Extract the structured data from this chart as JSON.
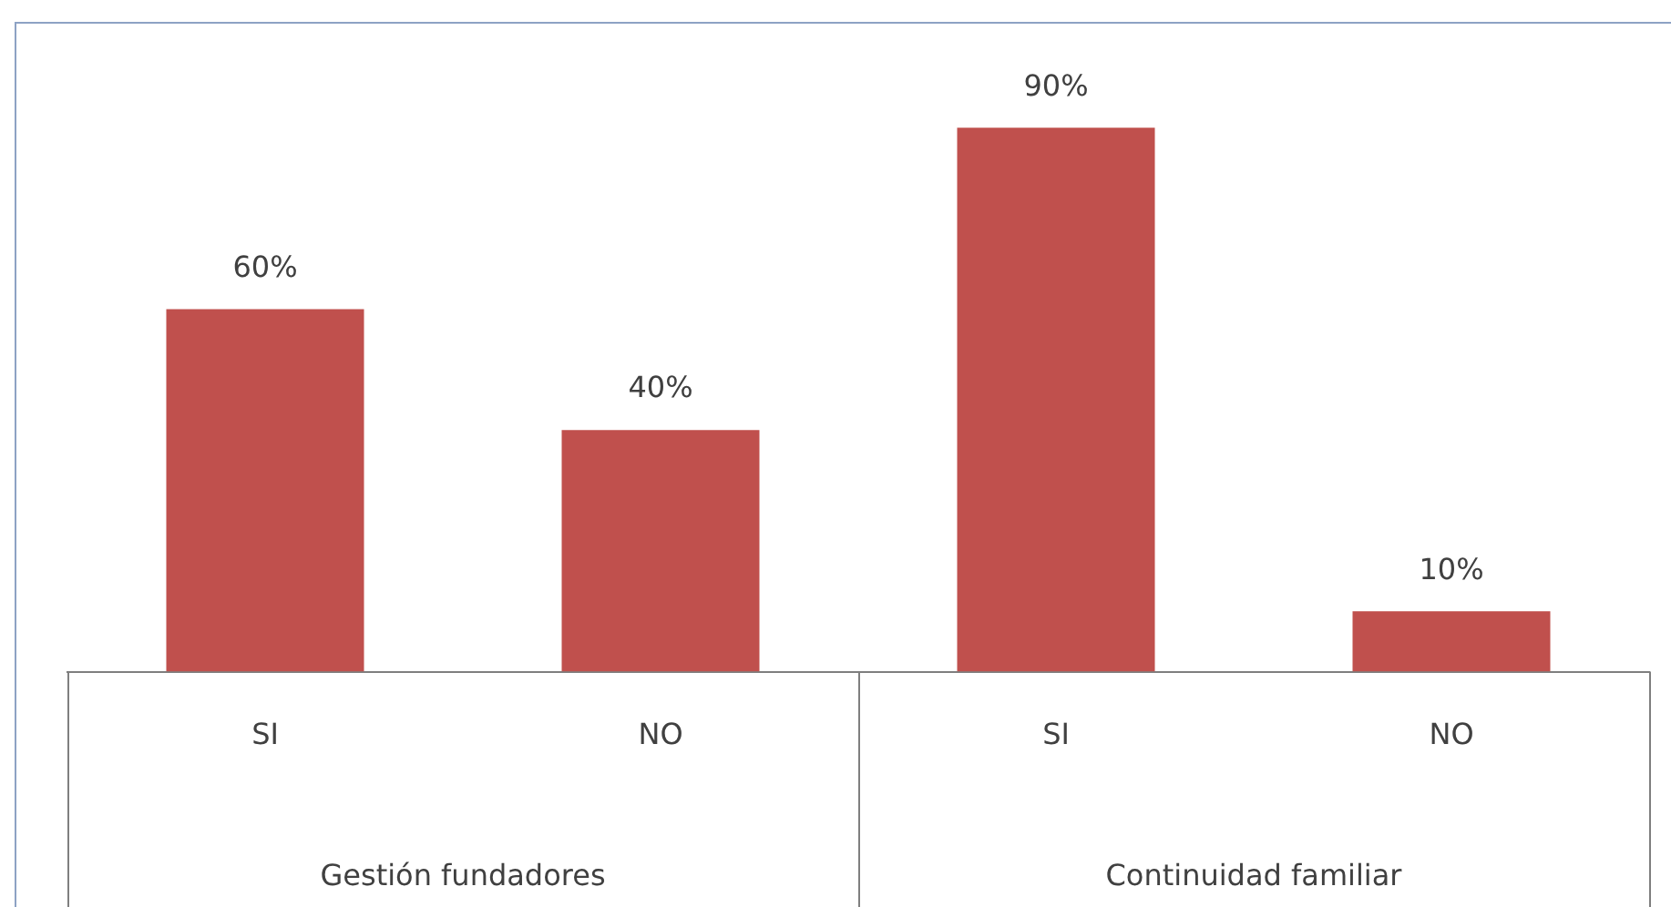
{
  "chart_data": {
    "type": "bar",
    "categories": [
      "SI",
      "NO",
      "SI",
      "NO"
    ],
    "values": [
      60,
      40,
      90,
      10
    ],
    "color": "#c0504d",
    "value_labels": [
      "60%",
      "40%",
      "90%",
      "10%"
    ],
    "annotations": [
      "Gestión fundadores",
      "Continuidad familiar"
    ],
    "grid": false,
    "legend": false,
    "tick_labels": "x"
  }
}
